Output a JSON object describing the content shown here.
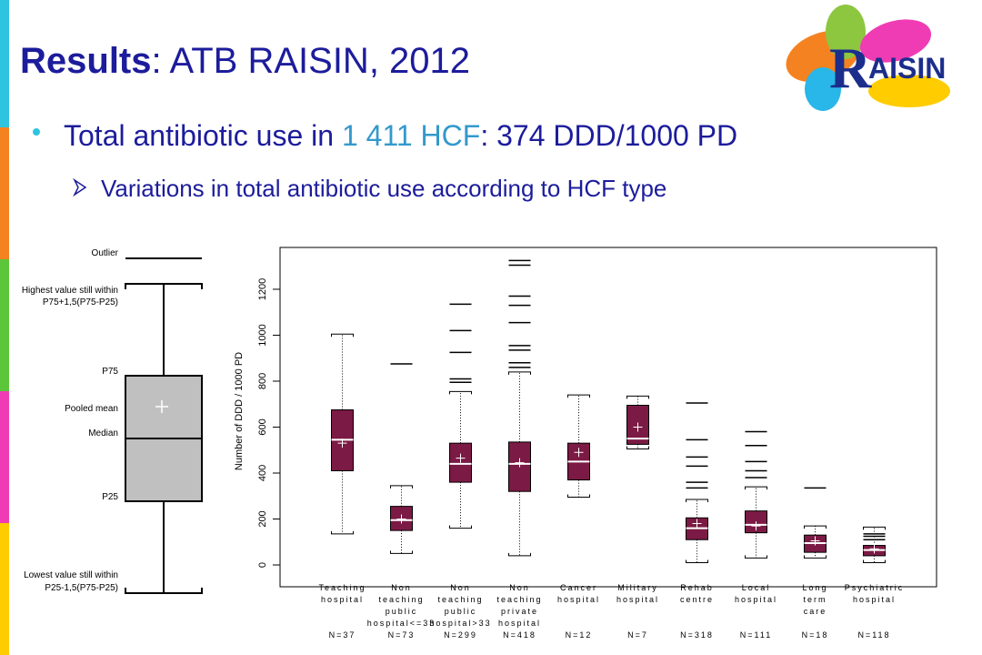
{
  "slide": {
    "title_bold": "Results",
    "title_rest": ": ATB RAISIN, 2012",
    "bullet_start": "Total antibiotic use in ",
    "bullet_highlight": "1 411 HCF",
    "bullet_end": ": 374 DDD/1000 PD",
    "sub_bullet": "Variations in total antibiotic use according to HCF type",
    "logo_initial": "R",
    "logo_rest": "AISIN"
  },
  "key": {
    "outlier": "Outlier",
    "high_1": "Highest value still within",
    "high_2": "P75+1,5(P75-P25)",
    "p75": "P75",
    "mean": "Pooled mean",
    "median": "Median",
    "p25": "P25",
    "low_1": "Lowest value still within",
    "low_2": "P25-1,5(P75-P25)"
  },
  "chart_data": {
    "type": "boxplot",
    "y_label": "Number of DDD / 1000 PD",
    "color": "#7b1a44",
    "ylim": [
      -95,
      1382
    ],
    "yticks": [
      0,
      200,
      400,
      600,
      800,
      1000,
      1200
    ],
    "categories": [
      [
        "Teaching",
        "hospital"
      ],
      [
        "Non",
        "teaching",
        "public",
        "hospital<=33"
      ],
      [
        "Non",
        "teaching",
        "public",
        "hospital>33"
      ],
      [
        "Non",
        "teaching",
        "private",
        "hospital"
      ],
      [
        "Cancer",
        "hospital"
      ],
      [
        "Military",
        "hospital"
      ],
      [
        "Rehab",
        "centre"
      ],
      [
        "Local",
        "hospital"
      ],
      [
        "Long",
        "term",
        "care"
      ],
      [
        "Psychiatric",
        "hospital"
      ]
    ],
    "n_labels": [
      "N=37",
      "N=73",
      "N=299",
      "N=418",
      "N=12",
      "N=7",
      "N=318",
      "N=111",
      "N=18",
      "N=118"
    ],
    "boxes": [
      {
        "min": 135,
        "q1": 410,
        "median": 545,
        "q3": 675,
        "max": 1005,
        "mean": 530,
        "outliers": []
      },
      {
        "min": 50,
        "q1": 150,
        "median": 195,
        "q3": 255,
        "max": 345,
        "mean": 200,
        "outliers": [
          875
        ]
      },
      {
        "min": 160,
        "q1": 360,
        "median": 440,
        "q3": 530,
        "max": 755,
        "mean": 465,
        "outliers": [
          1135,
          1020,
          925,
          810,
          795
        ]
      },
      {
        "min": 40,
        "q1": 320,
        "median": 440,
        "q3": 535,
        "max": 840,
        "mean": 445,
        "outliers": [
          1325,
          1305,
          1170,
          1130,
          1055,
          955,
          935,
          880,
          860
        ]
      },
      {
        "min": 295,
        "q1": 370,
        "median": 450,
        "q3": 530,
        "max": 740,
        "mean": 490,
        "outliers": []
      },
      {
        "min": 505,
        "q1": 525,
        "median": 550,
        "q3": 695,
        "max": 735,
        "mean": 600,
        "outliers": []
      },
      {
        "min": 10,
        "q1": 110,
        "median": 160,
        "q3": 205,
        "max": 285,
        "mean": 180,
        "outliers": [
          705,
          545,
          470,
          430,
          360,
          335
        ]
      },
      {
        "min": 30,
        "q1": 140,
        "median": 175,
        "q3": 235,
        "max": 340,
        "mean": 170,
        "outliers": [
          580,
          520,
          450,
          410,
          380
        ]
      },
      {
        "min": 30,
        "q1": 55,
        "median": 95,
        "q3": 130,
        "max": 170,
        "mean": 105,
        "outliers": [
          335
        ]
      },
      {
        "min": 10,
        "q1": 40,
        "median": 65,
        "q3": 85,
        "max": 165,
        "mean": 70,
        "outliers": [
          135,
          125,
          110
        ]
      }
    ]
  }
}
